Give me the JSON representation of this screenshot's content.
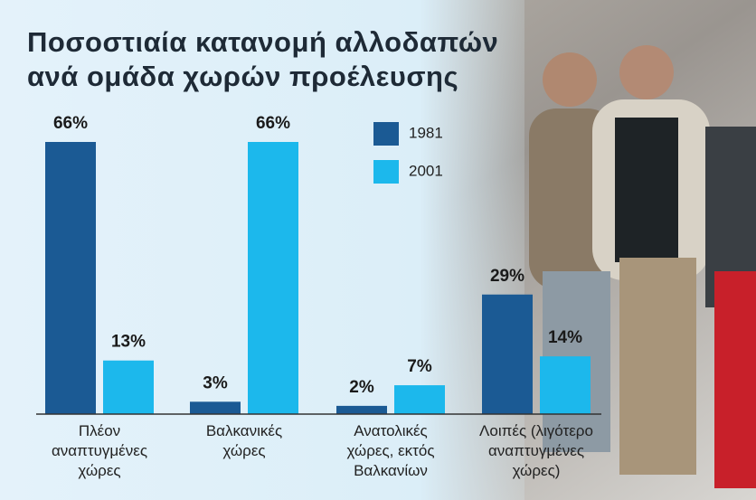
{
  "chart_data": {
    "type": "bar",
    "title": "Ποσοστιαία κατανομή αλλοδαπών\nανά ομάδα χωρών προέλευσης",
    "categories": [
      "Πλέον\nαναπτυγμένες\nχώρες",
      "Βαλκανικές\nχώρες",
      "Ανατολικές\nχώρες, εκτός\nΒαλκανίων",
      "Λοιπές (λιγότερο\nαναπτυγμένες\nχώρες)"
    ],
    "series": [
      {
        "name": "1981",
        "color": "#1b5a94",
        "values": [
          66,
          3,
          2,
          29
        ],
        "value_labels": [
          "66%",
          "3%",
          "2%",
          "29%"
        ]
      },
      {
        "name": "2001",
        "color": "#1cb8ec",
        "values": [
          13,
          66,
          7,
          14
        ],
        "value_labels": [
          "13%",
          "66%",
          "7%",
          "14%"
        ]
      }
    ]
  }
}
